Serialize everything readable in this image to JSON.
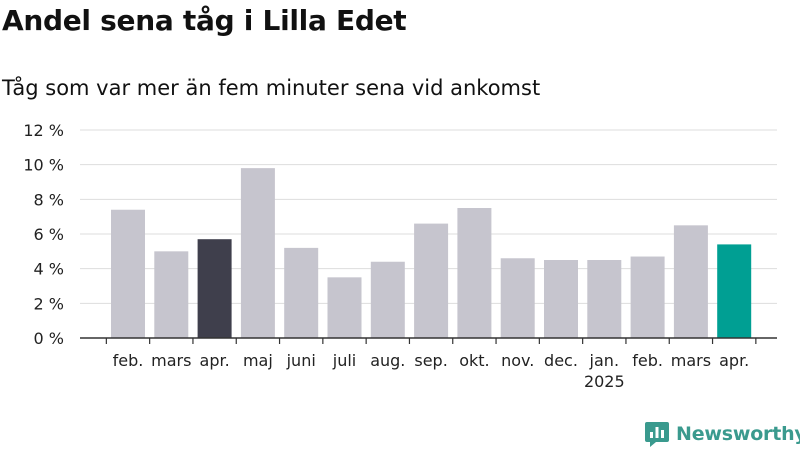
{
  "header": {
    "title": "Andel sena tåg i Lilla Edet",
    "subtitle": "Tåg som var mer än fem minuter sena vid ankomst"
  },
  "brand": {
    "name": "Newsworthy"
  },
  "colors": {
    "default_bar": "#c6c5ce",
    "highlight_prev_year": "#3f3f4c",
    "highlight_current": "#009f93",
    "grid": "#dddddd",
    "axis": "#333333",
    "brand": "#3a9a8e"
  },
  "chart_data": {
    "type": "bar",
    "categories": [
      "feb.",
      "mars",
      "apr.",
      "maj",
      "juni",
      "juli",
      "aug.",
      "sep.",
      "okt.",
      "nov.",
      "dec.",
      "jan.",
      "feb.",
      "mars",
      "apr."
    ],
    "year_labels": [
      {
        "index": 11,
        "label": "2025"
      }
    ],
    "values": [
      7.4,
      5.0,
      5.7,
      9.8,
      5.2,
      3.5,
      4.4,
      6.6,
      7.5,
      4.6,
      4.5,
      4.5,
      4.7,
      6.5,
      5.4
    ],
    "highlight": {
      "2": "#3f3f4c",
      "14": "#009f93"
    },
    "ylim": [
      0,
      12
    ],
    "yticks": [
      0,
      2,
      4,
      6,
      8,
      10,
      12
    ],
    "ytick_labels": [
      "0 %",
      "2 %",
      "4 %",
      "6 %",
      "8 %",
      "10 %",
      "12 %"
    ],
    "grid": true,
    "legend": "none"
  }
}
